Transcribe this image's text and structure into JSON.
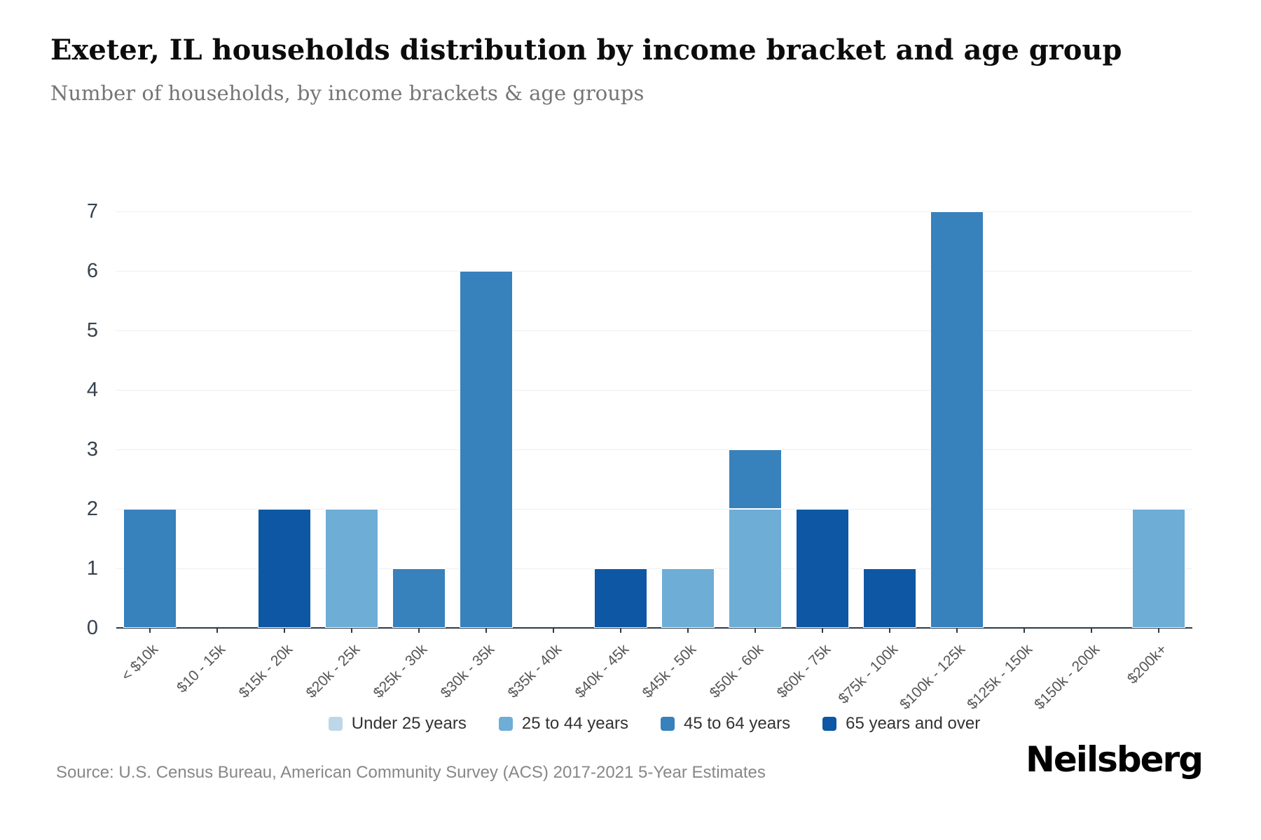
{
  "chart_data": {
    "type": "bar",
    "stacked": true,
    "title": "Exeter, IL households distribution by income bracket and age group",
    "subtitle": "Number of households, by income brackets & age groups",
    "xlabel": "",
    "ylabel": "",
    "ylim": [
      0,
      7
    ],
    "yticks": [
      0,
      1,
      2,
      3,
      4,
      5,
      6,
      7
    ],
    "grid": true,
    "legend_position": "bottom",
    "categories": [
      "< $10k",
      "$10 - 15k",
      "$15k - 20k",
      "$20k - 25k",
      "$25k - 30k",
      "$30k - 35k",
      "$35k - 40k",
      "$40k - 45k",
      "$45k - 50k",
      "$50k - 60k",
      "$60k - 75k",
      "$75k - 100k",
      "$100k - 125k",
      "$125k - 150k",
      "$150k - 200k",
      "$200k+"
    ],
    "series": [
      {
        "name": "Under 25 years",
        "color": "#bdd7e8",
        "values": [
          0,
          0,
          0,
          0,
          0,
          0,
          0,
          0,
          0,
          0,
          0,
          0,
          0,
          0,
          0,
          0
        ]
      },
      {
        "name": "25 to 44 years",
        "color": "#6dadd6",
        "values": [
          0,
          0,
          0,
          2,
          0,
          0,
          0,
          0,
          1,
          2,
          0,
          0,
          0,
          0,
          0,
          2
        ]
      },
      {
        "name": "45 to 64 years",
        "color": "#3781bd",
        "values": [
          2,
          0,
          0,
          0,
          1,
          6,
          0,
          0,
          0,
          1,
          0,
          0,
          7,
          0,
          0,
          0
        ]
      },
      {
        "name": "65 years and over",
        "color": "#0d57a4",
        "values": [
          0,
          0,
          2,
          0,
          0,
          0,
          0,
          1,
          0,
          0,
          2,
          1,
          0,
          0,
          0,
          0
        ]
      }
    ],
    "axis_color": "#2e3a45",
    "gridline_color": "#efefef"
  },
  "footer": {
    "source": "Source: U.S. Census Bureau, American Community Survey (ACS) 2017-2021 5-Year Estimates",
    "logo": "Neilsberg"
  }
}
